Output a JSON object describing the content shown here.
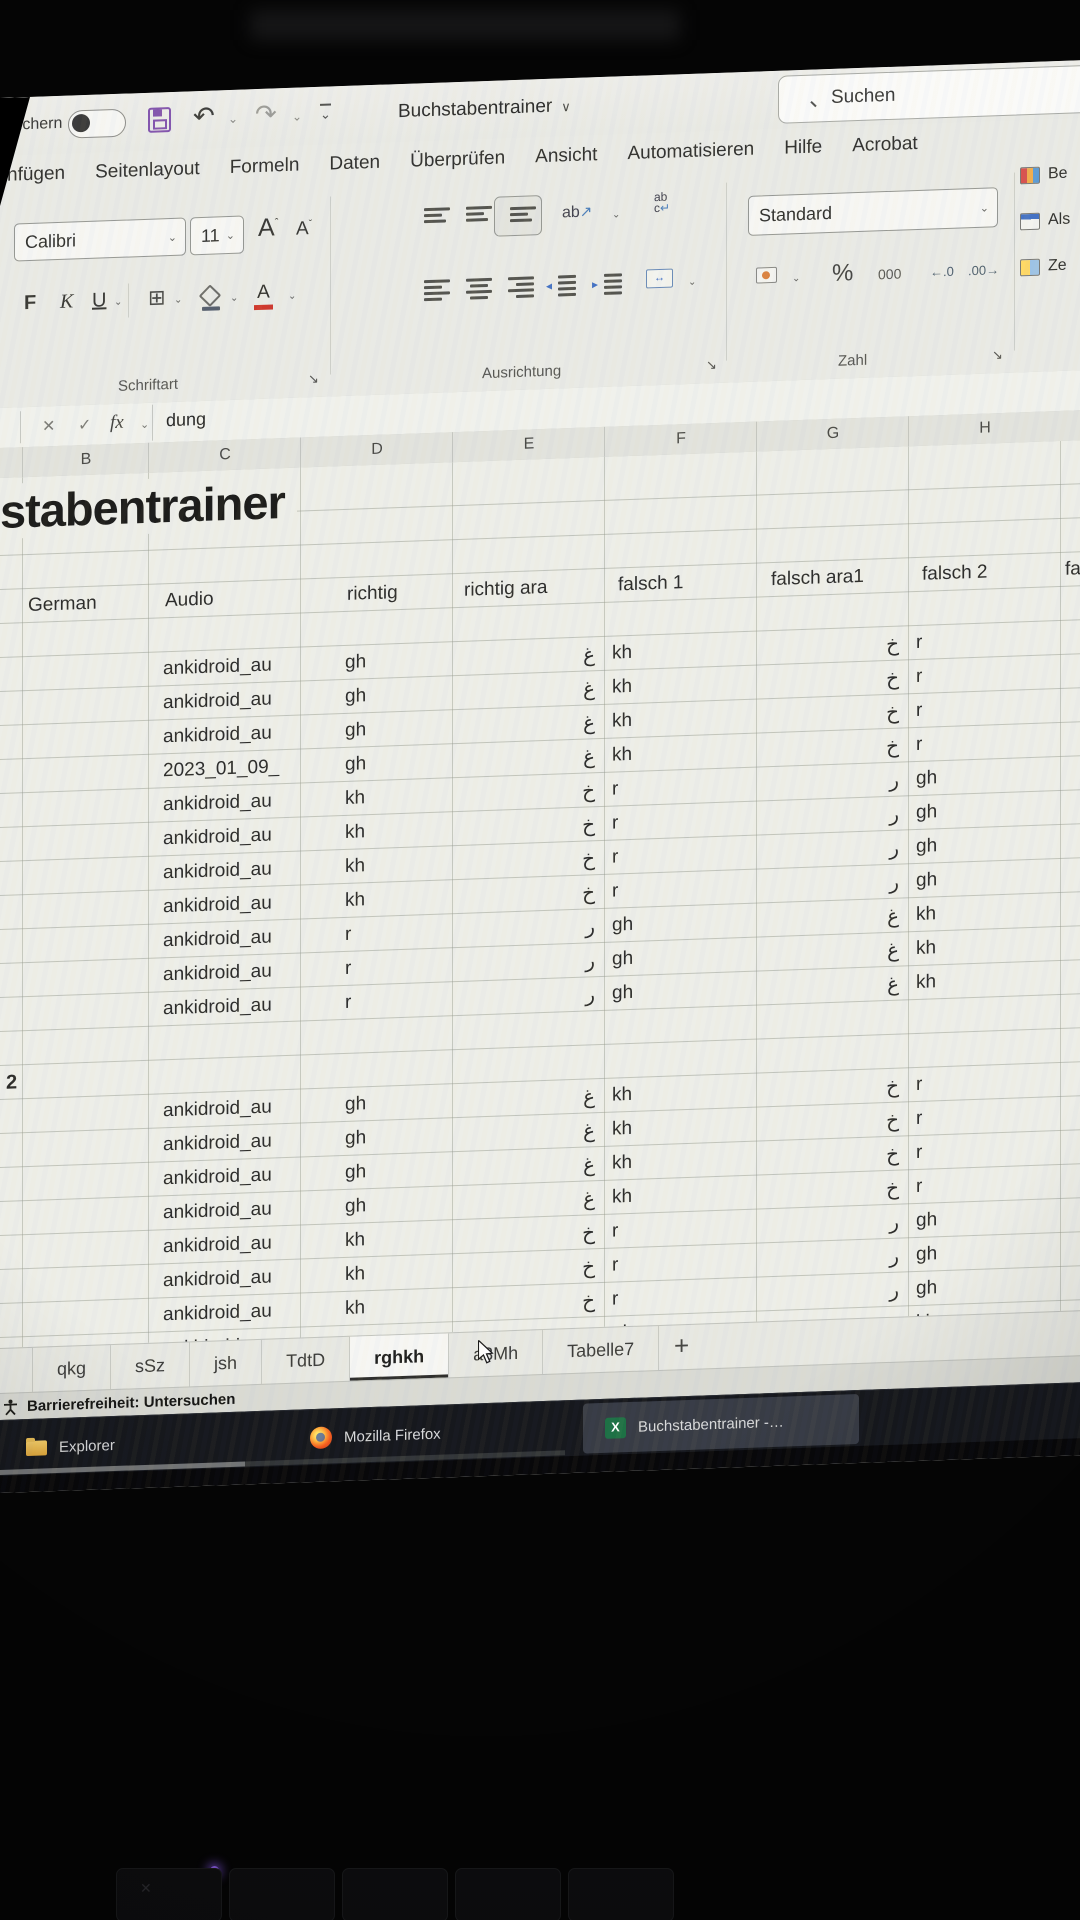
{
  "titlebar": {
    "autosave_label": "beichern",
    "title": "Buchstabentrainer",
    "title_chevron": "∨",
    "search_label": "Suchen"
  },
  "glyphs": {
    "undo": "↶",
    "redo": "↷",
    "chevron": "⌄",
    "launcher": "↘",
    "borders": "⊞",
    "wrap_arrow": "↵",
    "orient_arrow": "↗",
    "merge_arrow": "↔",
    "cancel": "✕",
    "enter": "✓",
    "fx": "fx",
    "dec_left": "←.0",
    "dec_right": ".00→"
  },
  "ribbon_tabs": [
    "nfügen",
    "Seitenlayout",
    "Formeln",
    "Daten",
    "Überprüfen",
    "Ansicht",
    "Automatisieren",
    "Hilfe",
    "Acrobat"
  ],
  "ribbon": {
    "font": {
      "name": "Calibri",
      "size": "11",
      "grow": "A",
      "shrink": "A",
      "bold": "F",
      "italic": "K",
      "underline": "U",
      "color_letter": "A",
      "group_label": "Schriftart"
    },
    "align": {
      "orientation": "ab",
      "wrap_top": "ab",
      "wrap_bottom": "c",
      "group_label": "Ausrichtung"
    },
    "number": {
      "format": "Standard",
      "percent": "%",
      "thousands": "000",
      "group_label": "Zahl"
    },
    "styles": [
      {
        "label": "Be"
      },
      {
        "label": "Als"
      },
      {
        "label": "Ze"
      }
    ]
  },
  "formula_bar": {
    "value": "dung"
  },
  "sheet": {
    "columns": [
      "B",
      "C",
      "D",
      "E",
      "F",
      "G",
      "H"
    ],
    "title": "stabentrainer",
    "headers": [
      "German",
      "Audio",
      "richtig",
      "richtig ara",
      "falsch 1",
      "falsch ara1",
      "falsch 2",
      "fa"
    ],
    "section_label": "2",
    "rows1": [
      {
        "a": "ankidroid_au",
        "r": "gh",
        "ra": "غ",
        "f1": "kh",
        "fa1": "خ",
        "f2": "r"
      },
      {
        "a": "ankidroid_au",
        "r": "gh",
        "ra": "غ",
        "f1": "kh",
        "fa1": "خ",
        "f2": "r"
      },
      {
        "a": "ankidroid_au",
        "r": "gh",
        "ra": "غ",
        "f1": "kh",
        "fa1": "خ",
        "f2": "r"
      },
      {
        "a": "2023_01_09_",
        "r": "gh",
        "ra": "غ",
        "f1": "kh",
        "fa1": "خ",
        "f2": "r"
      },
      {
        "a": "ankidroid_au",
        "r": "kh",
        "ra": "خ",
        "f1": "r",
        "fa1": "ر",
        "f2": "gh"
      },
      {
        "a": "ankidroid_au",
        "r": "kh",
        "ra": "خ",
        "f1": "r",
        "fa1": "ر",
        "f2": "gh"
      },
      {
        "a": "ankidroid_au",
        "r": "kh",
        "ra": "خ",
        "f1": "r",
        "fa1": "ر",
        "f2": "gh"
      },
      {
        "a": "ankidroid_au",
        "r": "kh",
        "ra": "خ",
        "f1": "r",
        "fa1": "ر",
        "f2": "gh"
      },
      {
        "a": "ankidroid_au",
        "r": "r",
        "ra": "ر",
        "f1": "gh",
        "fa1": "غ",
        "f2": "kh"
      },
      {
        "a": "ankidroid_au",
        "r": "r",
        "ra": "ر",
        "f1": "gh",
        "fa1": "غ",
        "f2": "kh"
      },
      {
        "a": "ankidroid_au",
        "r": "r",
        "ra": "ر",
        "f1": "gh",
        "fa1": "غ",
        "f2": "kh"
      }
    ],
    "rows2": [
      {
        "a": "ankidroid_au",
        "r": "gh",
        "ra": "غ",
        "f1": "kh",
        "fa1": "خ",
        "f2": "r"
      },
      {
        "a": "ankidroid_au",
        "r": "gh",
        "ra": "غ",
        "f1": "kh",
        "fa1": "خ",
        "f2": "r"
      },
      {
        "a": "ankidroid_au",
        "r": "gh",
        "ra": "غ",
        "f1": "kh",
        "fa1": "خ",
        "f2": "r"
      },
      {
        "a": "ankidroid_au",
        "r": "gh",
        "ra": "غ",
        "f1": "kh",
        "fa1": "خ",
        "f2": "r"
      },
      {
        "a": "ankidroid_au",
        "r": "kh",
        "ra": "خ",
        "f1": "r",
        "fa1": "ر",
        "f2": "gh"
      },
      {
        "a": "ankidroid_au",
        "r": "kh",
        "ra": "خ",
        "f1": "r",
        "fa1": "ر",
        "f2": "gh"
      },
      {
        "a": "ankidroid_au",
        "r": "kh",
        "ra": "خ",
        "f1": "r",
        "fa1": "ر",
        "f2": "gh"
      },
      {
        "a": "ankidroid_au",
        "r": "r",
        "ra": "ر",
        "f1": "gh",
        "fa1": "غ",
        "f2": "kh"
      }
    ]
  },
  "sheet_tabs": [
    {
      "label": "qkg"
    },
    {
      "label": "sSz"
    },
    {
      "label": "jsh"
    },
    {
      "label": "TdtD"
    },
    {
      "label": "rghkh",
      "active": true
    },
    {
      "label": "a3Mh"
    },
    {
      "label": "Tabelle7"
    }
  ],
  "new_sheet_label": "+",
  "status_bar": {
    "text": "Barrierefreiheit: Untersuchen"
  },
  "taskbar": [
    {
      "label": "Explorer",
      "icon": "folder"
    },
    {
      "label": "Mozilla Firefox",
      "icon": "firefox"
    },
    {
      "label": "Buchstabentrainer -…",
      "icon": "excel",
      "active": true
    }
  ]
}
